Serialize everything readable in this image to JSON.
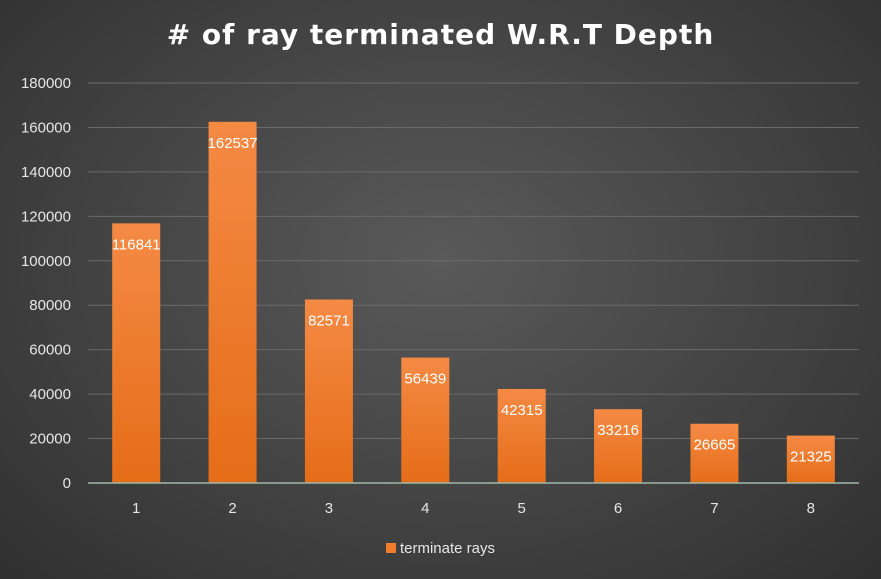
{
  "chart_data": {
    "type": "bar",
    "title": "# of ray terminated W.R.T Depth",
    "xlabel": "",
    "ylabel": "",
    "categories": [
      "1",
      "2",
      "3",
      "4",
      "5",
      "6",
      "7",
      "8"
    ],
    "series": [
      {
        "name": "terminate rays",
        "values": [
          116841,
          162537,
          82571,
          56439,
          42315,
          33216,
          26665,
          21325
        ]
      }
    ],
    "ylim": [
      0,
      180000
    ],
    "yticks": [
      "0",
      "20000",
      "40000",
      "60000",
      "80000",
      "100000",
      "120000",
      "140000",
      "160000",
      "180000"
    ],
    "data_labels": [
      "116841",
      "162537",
      "82571",
      "56439",
      "42315",
      "33216",
      "26665",
      "21325"
    ],
    "grid": true,
    "legend_position": "bottom",
    "colors": {
      "bar_top": "#f58a45",
      "bar_bottom": "#e56d18",
      "gridline": "#6a6a6a",
      "axis": "#9fb8a8",
      "legend_swatch": "#f07c2c"
    }
  }
}
